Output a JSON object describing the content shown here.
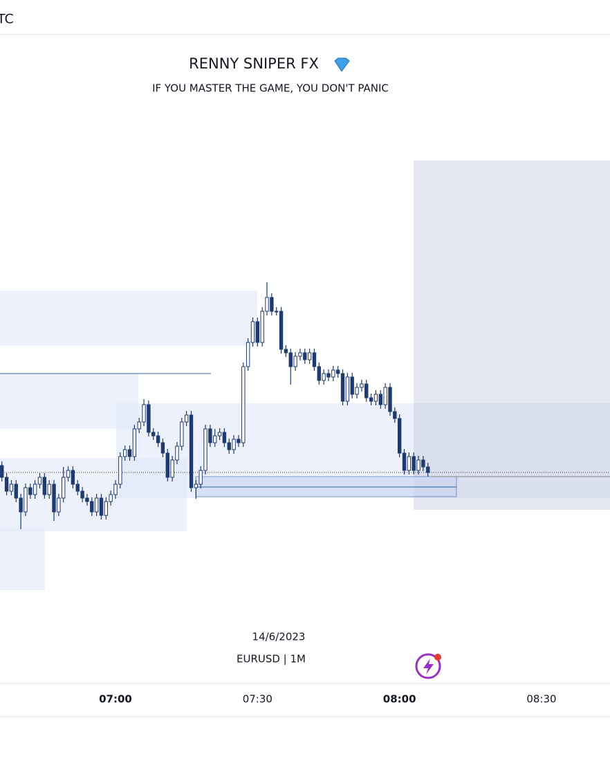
{
  "header": {
    "timezone": "TC"
  },
  "chart_data": {
    "type": "candlestick",
    "title": "RENNY SNIPER FX",
    "subtitle": "IF YOU MASTER THE GAME, YOU DON'T PANIC",
    "date_label": "14/6/2023",
    "symbol_label": "EURUSD | 1M",
    "x": [
      "06:36",
      "06:37",
      "06:38",
      "06:39",
      "06:40",
      "06:41",
      "06:42",
      "06:43",
      "06:44",
      "06:45",
      "06:46",
      "06:47",
      "06:48",
      "06:49",
      "06:50",
      "06:51",
      "06:52",
      "06:53",
      "06:54",
      "06:55",
      "06:56",
      "06:57",
      "06:58",
      "06:59",
      "07:00",
      "07:01",
      "07:02",
      "07:03",
      "07:04",
      "07:05",
      "07:06",
      "07:07",
      "07:08",
      "07:09",
      "07:10",
      "07:11",
      "07:12",
      "07:13",
      "07:14",
      "07:15",
      "07:16",
      "07:17",
      "07:18",
      "07:19",
      "07:20",
      "07:21",
      "07:22",
      "07:23",
      "07:24",
      "07:25",
      "07:26",
      "07:27",
      "07:28",
      "07:29",
      "07:30",
      "07:31",
      "07:32",
      "07:33",
      "07:34",
      "07:35",
      "07:36",
      "07:37",
      "07:38",
      "07:39",
      "07:40",
      "07:41",
      "07:42",
      "07:43",
      "07:44",
      "07:45",
      "07:46",
      "07:47",
      "07:48",
      "07:49",
      "07:50",
      "07:51",
      "07:52",
      "07:53",
      "07:54",
      "07:55",
      "07:56",
      "07:57",
      "07:58",
      "07:59",
      "08:00",
      "08:01",
      "08:02",
      "08:03",
      "08:04",
      "08:05",
      "08:06"
    ],
    "open": [
      1.0801,
      1.07993,
      1.07973,
      1.07983,
      1.07963,
      1.07943,
      1.07978,
      1.07968,
      1.07983,
      1.07993,
      1.07968,
      1.07983,
      1.07943,
      1.07963,
      1.07993,
      1.08003,
      1.07983,
      1.07973,
      1.07963,
      1.07958,
      1.07943,
      1.07963,
      1.07938,
      1.07958,
      1.07968,
      1.07983,
      1.08023,
      1.08033,
      1.08023,
      1.08063,
      1.08073,
      1.08098,
      1.08058,
      1.08053,
      1.08043,
      1.08028,
      1.07993,
      1.08018,
      1.08038,
      1.08073,
      1.08083,
      1.07978,
      1.07983,
      1.08003,
      1.08063,
      1.08043,
      1.08053,
      1.08058,
      1.08043,
      1.08033,
      1.08048,
      1.08043,
      1.08153,
      1.08188,
      1.08218,
      1.08188,
      1.08233,
      1.08253,
      1.08233,
      1.08233,
      1.08178,
      1.08173,
      1.08153,
      1.08168,
      1.08173,
      1.08163,
      1.08173,
      1.08153,
      1.08133,
      1.08143,
      1.08138,
      1.08148,
      1.08143,
      1.08103,
      1.08138,
      1.08113,
      1.08123,
      1.08128,
      1.08108,
      1.08103,
      1.08113,
      1.08098,
      1.08123,
      1.08088,
      1.08078,
      1.08028,
      1.08003,
      1.08023,
      1.08003,
      1.08018,
      1.08008
    ],
    "high": [
      1.08016,
      1.07999,
      1.07989,
      1.07989,
      1.07969,
      1.07984,
      1.07984,
      1.07989,
      1.07999,
      1.07999,
      1.07989,
      1.07989,
      1.07969,
      1.08008,
      1.08009,
      1.08009,
      1.07989,
      1.07979,
      1.07969,
      1.07964,
      1.07969,
      1.07969,
      1.07964,
      1.07974,
      1.07989,
      1.08029,
      1.08039,
      1.08039,
      1.08069,
      1.08079,
      1.08106,
      1.08104,
      1.08064,
      1.08059,
      1.08049,
      1.08034,
      1.08024,
      1.08044,
      1.08079,
      1.08089,
      1.08089,
      1.07989,
      1.08009,
      1.08069,
      1.08069,
      1.08063,
      1.08064,
      1.08064,
      1.08049,
      1.08054,
      1.08054,
      1.08159,
      1.08194,
      1.08224,
      1.08224,
      1.08239,
      1.08275,
      1.08259,
      1.08239,
      1.08239,
      1.08184,
      1.08179,
      1.08174,
      1.08179,
      1.08179,
      1.08179,
      1.08179,
      1.08159,
      1.08149,
      1.08149,
      1.08154,
      1.08154,
      1.08149,
      1.08144,
      1.08144,
      1.08129,
      1.08134,
      1.08134,
      1.08114,
      1.08119,
      1.08119,
      1.08129,
      1.08129,
      1.08094,
      1.08084,
      1.08034,
      1.08029,
      1.08029,
      1.08024,
      1.08024,
      1.08014
    ],
    "low": [
      1.07987,
      1.07967,
      1.07967,
      1.07957,
      1.07918,
      1.07937,
      1.07962,
      1.07962,
      1.07977,
      1.07962,
      1.07962,
      1.0793,
      1.07937,
      1.07957,
      1.07987,
      1.07977,
      1.07967,
      1.07957,
      1.07952,
      1.07937,
      1.07937,
      1.07932,
      1.07932,
      1.07952,
      1.07962,
      1.07977,
      1.08017,
      1.08017,
      1.08017,
      1.08057,
      1.08067,
      1.08052,
      1.08047,
      1.08037,
      1.08022,
      1.07987,
      1.07987,
      1.08012,
      1.08032,
      1.08067,
      1.07972,
      1.07962,
      1.07977,
      1.07997,
      1.08037,
      1.08037,
      1.08047,
      1.08037,
      1.08027,
      1.08027,
      1.08037,
      1.08037,
      1.08147,
      1.08182,
      1.08182,
      1.08182,
      1.08227,
      1.08227,
      1.08227,
      1.08172,
      1.08167,
      1.08127,
      1.08147,
      1.08162,
      1.08157,
      1.08157,
      1.08147,
      1.08127,
      1.08127,
      1.08132,
      1.08132,
      1.08137,
      1.08097,
      1.08097,
      1.08107,
      1.08107,
      1.08117,
      1.08102,
      1.08097,
      1.08097,
      1.08092,
      1.08092,
      1.08082,
      1.08072,
      1.08022,
      1.07997,
      1.07997,
      1.07997,
      1.07997,
      1.08002,
      1.07994
    ],
    "close": [
      1.07993,
      1.07973,
      1.07983,
      1.07963,
      1.07943,
      1.07978,
      1.07968,
      1.07983,
      1.07993,
      1.07968,
      1.07983,
      1.07943,
      1.07963,
      1.07993,
      1.08003,
      1.07983,
      1.07973,
      1.07963,
      1.07958,
      1.07943,
      1.07963,
      1.07938,
      1.07958,
      1.07968,
      1.07983,
      1.08023,
      1.08033,
      1.08023,
      1.08063,
      1.08073,
      1.08098,
      1.08058,
      1.08053,
      1.08043,
      1.08028,
      1.07993,
      1.08018,
      1.08038,
      1.08073,
      1.08083,
      1.07978,
      1.07983,
      1.08003,
      1.08063,
      1.08043,
      1.08053,
      1.08058,
      1.08043,
      1.08033,
      1.08048,
      1.08043,
      1.08153,
      1.08188,
      1.08218,
      1.08188,
      1.08233,
      1.08253,
      1.08233,
      1.08233,
      1.08178,
      1.08173,
      1.08153,
      1.08168,
      1.08173,
      1.08163,
      1.08173,
      1.08153,
      1.08133,
      1.08143,
      1.08138,
      1.08148,
      1.08143,
      1.08103,
      1.08138,
      1.08113,
      1.08123,
      1.08128,
      1.08108,
      1.08103,
      1.08113,
      1.08098,
      1.08123,
      1.08088,
      1.08078,
      1.08028,
      1.08003,
      1.08023,
      1.08003,
      1.08018,
      1.08008,
      1.08
    ],
    "ylim": [
      1.07803,
      1.08533
    ],
    "xticks": [
      "07:00",
      "07:30",
      "08:00",
      "08:30"
    ],
    "up_color": "#ffffff",
    "down_color": "#1e3a6e",
    "border_color": "#1e3a6e"
  }
}
